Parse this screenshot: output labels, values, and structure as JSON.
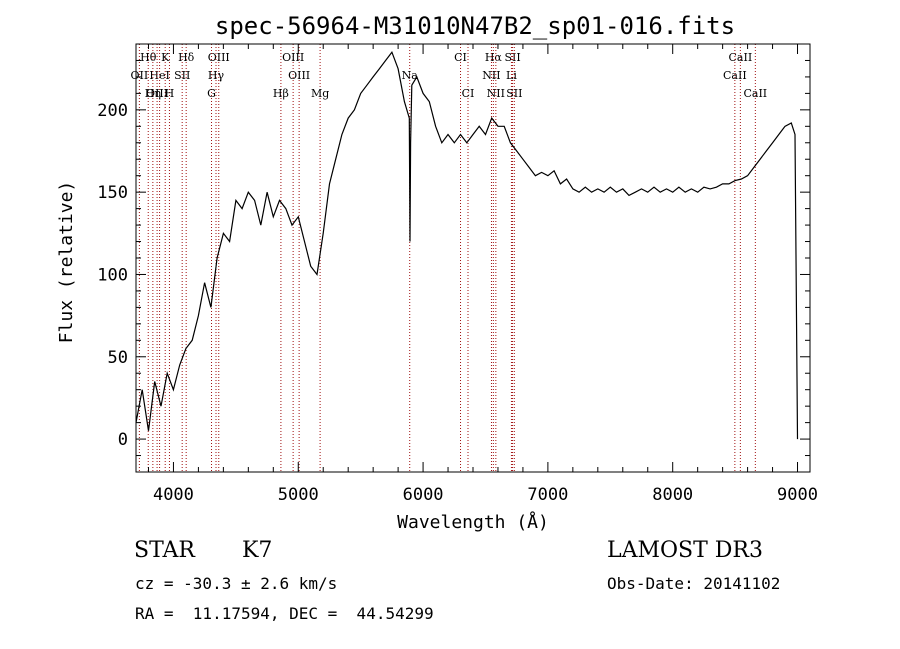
{
  "chart_data": {
    "type": "line",
    "title": "spec-56964-M31010N47B2_sp01-016.fits",
    "xlabel": "Wavelength (Å)",
    "ylabel": "Flux (relative)",
    "xlim": [
      3700,
      9100
    ],
    "ylim": [
      -20,
      240
    ],
    "x_ticks": [
      4000,
      5000,
      6000,
      7000,
      8000,
      9000
    ],
    "y_ticks": [
      0,
      50,
      100,
      150,
      200
    ],
    "x_tick_labels": [
      "4000",
      "5000",
      "6000",
      "7000",
      "8000",
      "9000"
    ],
    "y_tick_labels": [
      "0",
      "50",
      "100",
      "150",
      "200"
    ],
    "series": [
      {
        "x": [
          3700,
          3750,
          3800,
          3850,
          3900,
          3950,
          4000,
          4050,
          4100,
          4150,
          4200,
          4250,
          4300,
          4350,
          4400,
          4450,
          4500,
          4550,
          4600,
          4650,
          4700,
          4750,
          4800,
          4850,
          4900,
          4950,
          5000,
          5050,
          5100,
          5150,
          5200,
          5250,
          5300,
          5350,
          5400,
          5450,
          5500,
          5550,
          5600,
          5650,
          5700,
          5750,
          5800,
          5850,
          5890,
          5895,
          5900,
          5910,
          5950,
          6000,
          6050,
          6100,
          6150,
          6200,
          6250,
          6300,
          6350,
          6400,
          6450,
          6500,
          6550,
          6600,
          6650,
          6700,
          6750,
          6800,
          6850,
          6900,
          6950,
          7000,
          7050,
          7100,
          7150,
          7200,
          7250,
          7300,
          7350,
          7400,
          7450,
          7500,
          7550,
          7600,
          7650,
          7700,
          7750,
          7800,
          7850,
          7900,
          7950,
          8000,
          8050,
          8100,
          8150,
          8200,
          8250,
          8300,
          8350,
          8400,
          8450,
          8500,
          8550,
          8600,
          8650,
          8700,
          8750,
          8800,
          8850,
          8900,
          8950,
          8980,
          9000
        ],
        "y": [
          10,
          30,
          5,
          35,
          20,
          40,
          30,
          45,
          55,
          60,
          75,
          95,
          80,
          110,
          125,
          120,
          145,
          140,
          150,
          145,
          130,
          150,
          135,
          145,
          140,
          130,
          135,
          120,
          105,
          100,
          125,
          155,
          170,
          185,
          195,
          200,
          210,
          215,
          220,
          225,
          230,
          235,
          225,
          205,
          195,
          120,
          180,
          215,
          220,
          210,
          205,
          190,
          180,
          185,
          180,
          185,
          180,
          185,
          190,
          185,
          195,
          190,
          190,
          180,
          175,
          170,
          165,
          160,
          162,
          160,
          163,
          155,
          158,
          152,
          150,
          153,
          150,
          152,
          150,
          153,
          150,
          152,
          148,
          150,
          152,
          150,
          153,
          150,
          152,
          150,
          153,
          150,
          152,
          150,
          153,
          152,
          153,
          155,
          155,
          157,
          158,
          160,
          165,
          170,
          175,
          180,
          185,
          190,
          192,
          185,
          0
        ]
      }
    ],
    "lines": [
      {
        "label": "Hθ",
        "x": 3798,
        "row": 0
      },
      {
        "label": "K",
        "x": 3934,
        "row": 0
      },
      {
        "label": "Hδ",
        "x": 4102,
        "row": 0
      },
      {
        "label": "OIII",
        "x": 4363,
        "row": 0
      },
      {
        "label": "OIII",
        "x": 4959,
        "row": 0
      },
      {
        "label": "CI",
        "x": 6300,
        "row": 0
      },
      {
        "label": "Hα",
        "x": 6563,
        "row": 0
      },
      {
        "label": "SII",
        "x": 6717,
        "row": 0
      },
      {
        "label": "CaII",
        "x": 8542,
        "row": 0
      },
      {
        "label": "OII",
        "x": 3727,
        "row": 1
      },
      {
        "label": "HeI",
        "x": 3889,
        "row": 1
      },
      {
        "label": "SII",
        "x": 4070,
        "row": 1
      },
      {
        "label": "Hγ",
        "x": 4341,
        "row": 1
      },
      {
        "label": "OIII",
        "x": 5007,
        "row": 1
      },
      {
        "label": "NII",
        "x": 6548,
        "row": 1
      },
      {
        "label": "Li",
        "x": 6708,
        "row": 1
      },
      {
        "label": "CaII",
        "x": 8498,
        "row": 1
      },
      {
        "label": "OIII",
        "x": 3869,
        "row": 2
      },
      {
        "label": "Hη",
        "x": 3835,
        "row": 2
      },
      {
        "label": "H",
        "x": 3968,
        "row": 2
      },
      {
        "label": "G",
        "x": 4305,
        "row": 2
      },
      {
        "label": "Hβ",
        "x": 4861,
        "row": 2
      },
      {
        "label": "Mg",
        "x": 5175,
        "row": 2
      },
      {
        "label": "Na",
        "x": 5893,
        "row": 1
      },
      {
        "label": "CI",
        "x": 6360,
        "row": 2
      },
      {
        "label": "NII",
        "x": 6583,
        "row": 2
      },
      {
        "label": "SII",
        "x": 6731,
        "row": 2
      },
      {
        "label": "CaII",
        "x": 8662,
        "row": 2
      }
    ]
  },
  "info": {
    "class": "STAR",
    "subclass": "K7",
    "survey": "LAMOST DR3",
    "cz": "cz = -30.3 ± 2.6 km/s",
    "obs_date": "Obs-Date: 20141102",
    "coords": "RA =  11.17594, DEC =  44.54299"
  }
}
